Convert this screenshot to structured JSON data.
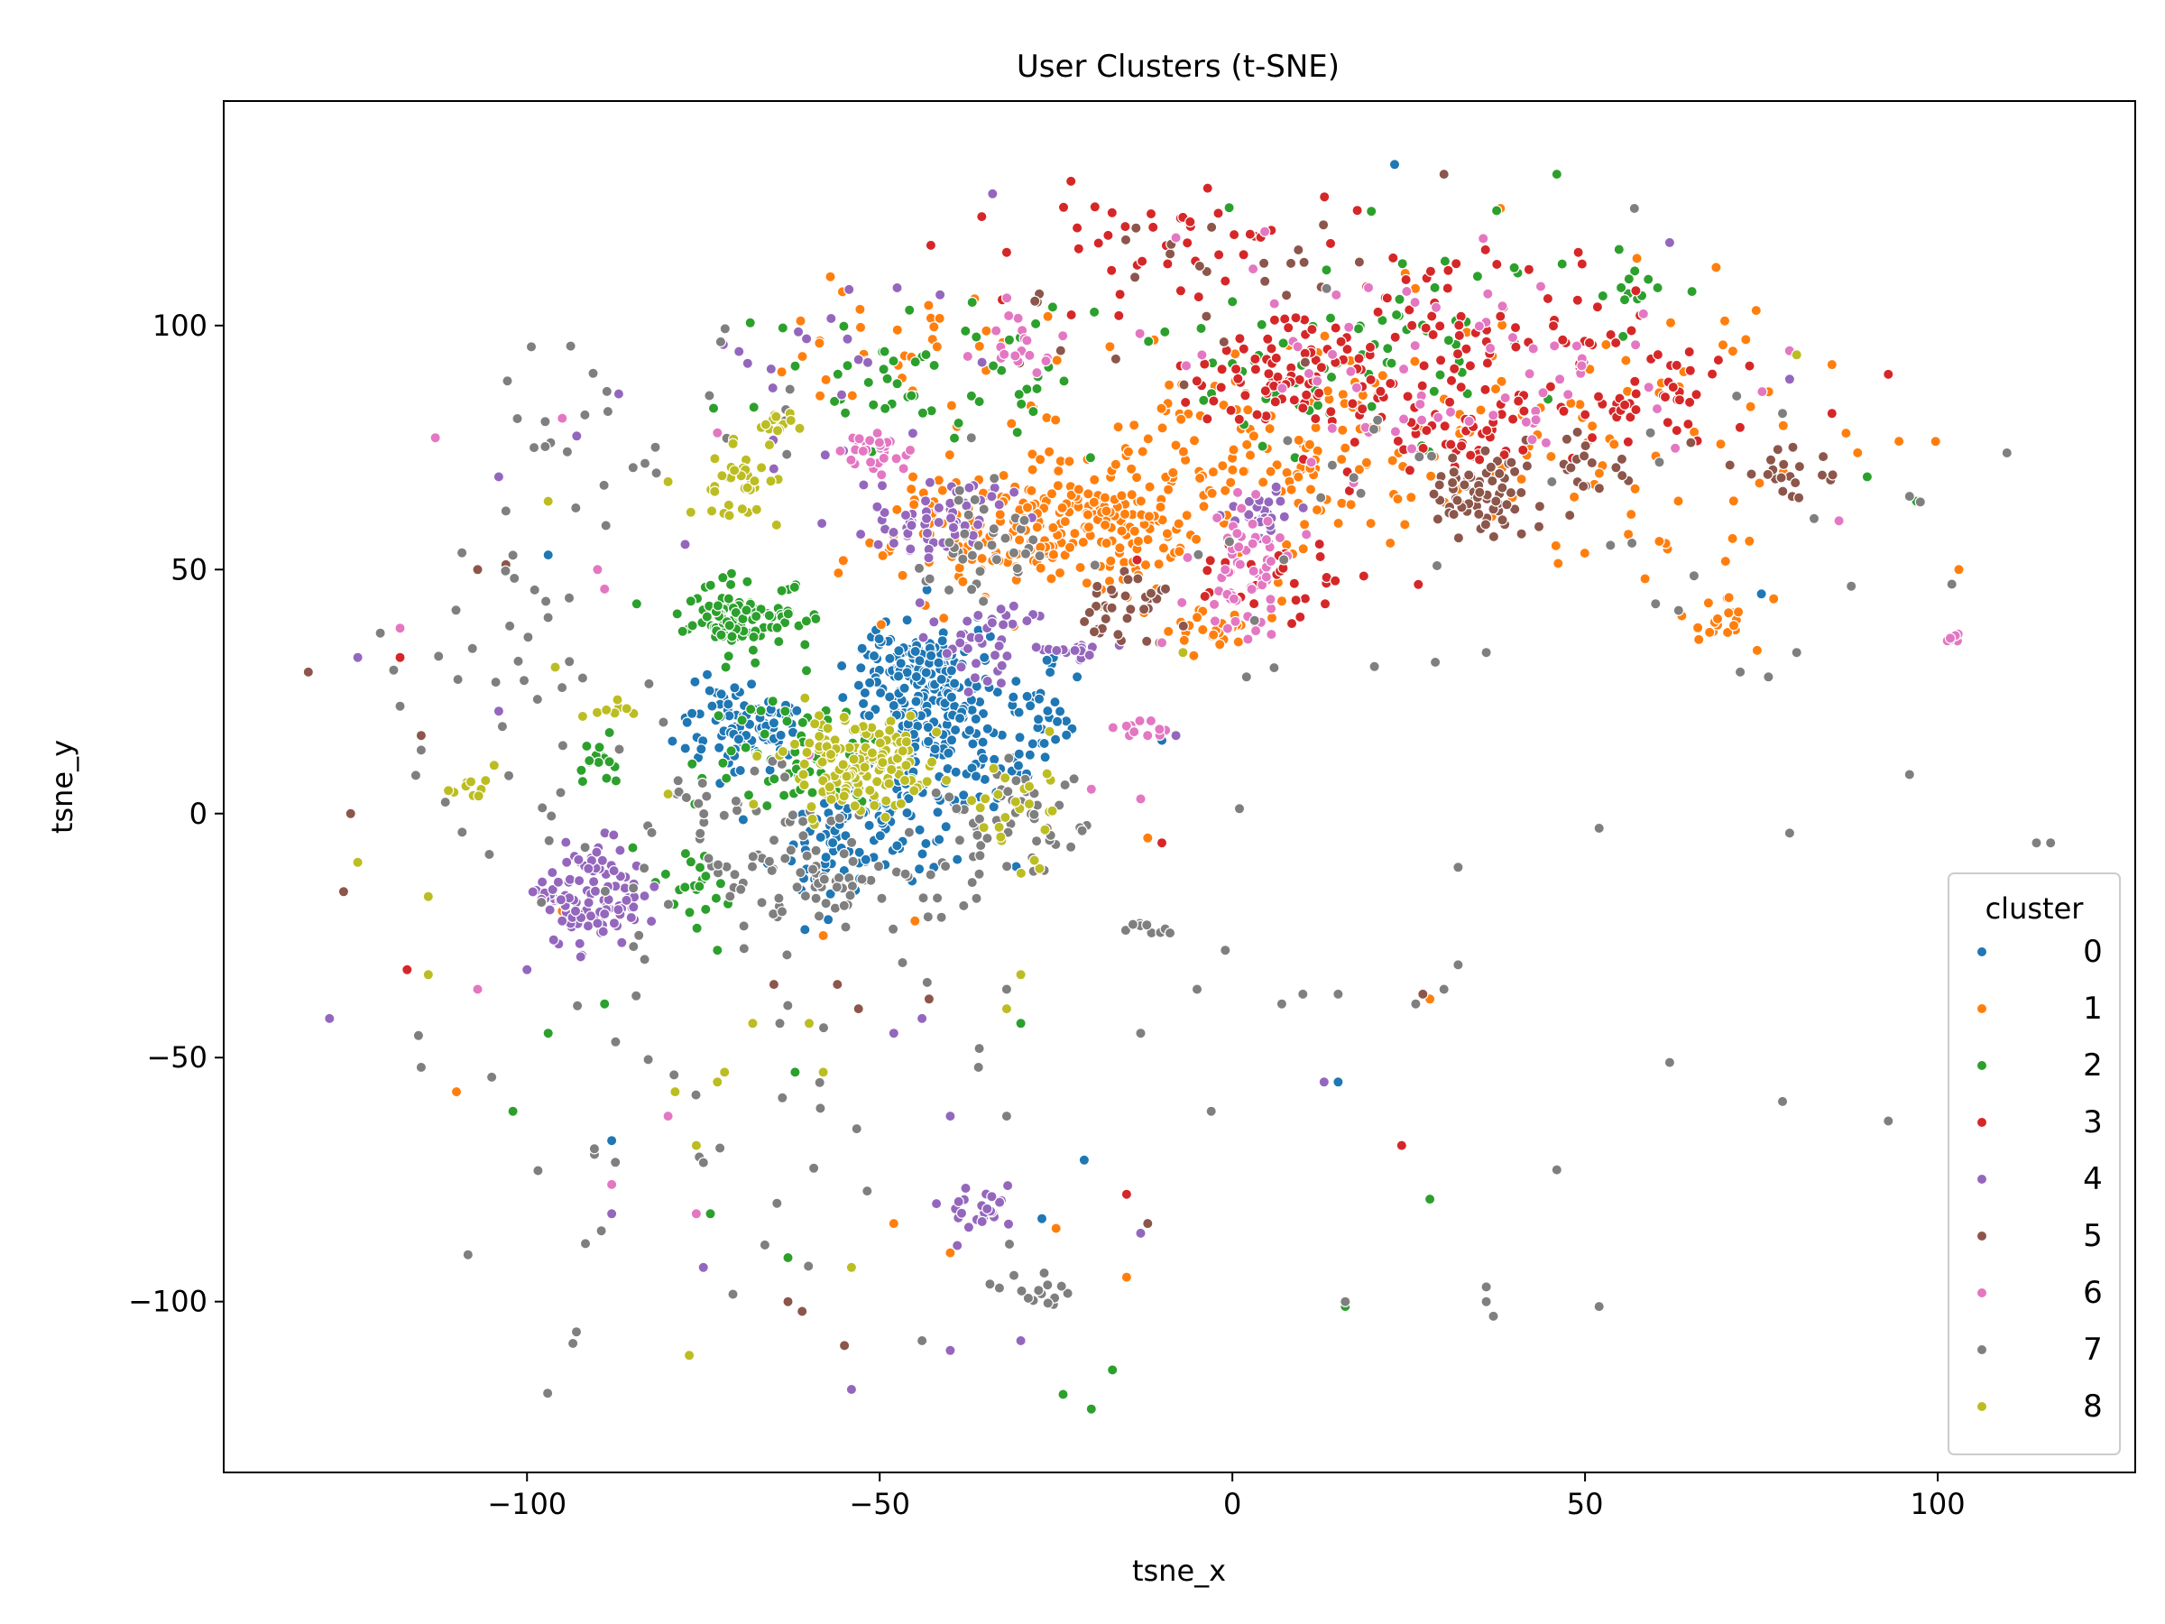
{
  "chart_data": {
    "type": "scatter",
    "title": "User Clusters (t-SNE)",
    "xlabel": "tsne_x",
    "ylabel": "tsne_y",
    "xlim": [
      -143,
      128
    ],
    "ylim": [
      -135,
      146
    ],
    "xticks": [
      -100,
      -50,
      0,
      50,
      100
    ],
    "yticks": [
      -100,
      -50,
      0,
      50,
      100
    ],
    "xtick_labels": [
      "−100",
      "−50",
      "0",
      "50",
      "100"
    ],
    "ytick_labels": [
      "−100",
      "−50",
      "0",
      "50",
      "100"
    ],
    "grid": false,
    "legend": {
      "title": "cluster",
      "placement": "lower-right"
    },
    "series": [
      {
        "name": "0",
        "color": "#1f77b4",
        "clusters": [
          {
            "x": -45,
            "y": 28,
            "sx": 4,
            "sy": 6,
            "n": 150
          },
          {
            "x": -42,
            "y": 12,
            "sx": 6,
            "sy": 8,
            "n": 160
          },
          {
            "x": -70,
            "y": 18,
            "sx": 4,
            "sy": 5,
            "n": 90
          },
          {
            "x": -55,
            "y": -5,
            "sx": 6,
            "sy": 7,
            "n": 80
          },
          {
            "x": -28,
            "y": 20,
            "sx": 3,
            "sy": 5,
            "n": 30
          }
        ],
        "points": [
          [
            23,
            133
          ],
          [
            75,
            45
          ],
          [
            -97,
            53
          ],
          [
            -88,
            -67
          ],
          [
            -14,
            17
          ],
          [
            15,
            -55
          ],
          [
            -22,
            28
          ],
          [
            -40,
            -62
          ],
          [
            -27,
            -83
          ],
          [
            -21,
            -71
          ],
          [
            -10,
            15
          ]
        ]
      },
      {
        "name": "1",
        "color": "#ff7f0e",
        "clusters": [
          {
            "x": -18,
            "y": 60,
            "sx": 8,
            "sy": 7,
            "n": 170
          },
          {
            "x": -38,
            "y": 57,
            "sx": 7,
            "sy": 6,
            "n": 90
          },
          {
            "x": 5,
            "y": 73,
            "sx": 12,
            "sy": 10,
            "n": 110
          },
          {
            "x": 45,
            "y": 75,
            "sx": 22,
            "sy": 15,
            "n": 110
          },
          {
            "x": -3,
            "y": 37,
            "sx": 3,
            "sy": 2,
            "n": 25
          },
          {
            "x": 70,
            "y": 40,
            "sx": 3,
            "sy": 3,
            "n": 20
          },
          {
            "x": -45,
            "y": 95,
            "sx": 14,
            "sy": 10,
            "n": 40
          }
        ],
        "points": [
          [
            -57,
            110
          ],
          [
            38,
            124
          ],
          [
            85,
            92
          ],
          [
            103,
            50
          ],
          [
            -95,
            -20
          ],
          [
            -40,
            -90
          ],
          [
            -25,
            -85
          ],
          [
            -15,
            -95
          ],
          [
            -58,
            -25
          ],
          [
            -48,
            -84
          ],
          [
            -110,
            -57
          ],
          [
            28,
            -38
          ],
          [
            -12,
            -5
          ],
          [
            -45,
            -22
          ]
        ]
      },
      {
        "name": "2",
        "color": "#2ca02c",
        "clusters": [
          {
            "x": -70,
            "y": 40,
            "sx": 4,
            "sy": 3,
            "n": 110
          },
          {
            "x": -62,
            "y": 12,
            "sx": 7,
            "sy": 7,
            "n": 60
          },
          {
            "x": -40,
            "y": 90,
            "sx": 12,
            "sy": 8,
            "n": 60
          },
          {
            "x": 15,
            "y": 95,
            "sx": 14,
            "sy": 10,
            "n": 70
          },
          {
            "x": -90,
            "y": 10,
            "sx": 2,
            "sy": 3,
            "n": 15
          },
          {
            "x": -76,
            "y": -15,
            "sx": 3,
            "sy": 4,
            "n": 20
          },
          {
            "x": 55,
            "y": 108,
            "sx": 5,
            "sy": 4,
            "n": 15
          }
        ],
        "points": [
          [
            46,
            131
          ],
          [
            -97,
            -45
          ],
          [
            -102,
            -61
          ],
          [
            -89,
            -39
          ],
          [
            -73,
            -28
          ],
          [
            -62,
            -53
          ],
          [
            -63,
            -91
          ],
          [
            -20,
            -122
          ],
          [
            -17,
            -114
          ],
          [
            -24,
            -119
          ],
          [
            16,
            -101
          ],
          [
            28,
            -79
          ],
          [
            -30,
            -43
          ],
          [
            90,
            69
          ],
          [
            97,
            64
          ],
          [
            -74,
            -82
          ],
          [
            -85,
            -7
          ]
        ]
      },
      {
        "name": "3",
        "color": "#d62728",
        "clusters": [
          {
            "x": 8,
            "y": 90,
            "sx": 7,
            "sy": 6,
            "n": 90
          },
          {
            "x": 30,
            "y": 78,
            "sx": 8,
            "sy": 6,
            "n": 60
          },
          {
            "x": 38,
            "y": 100,
            "sx": 10,
            "sy": 8,
            "n": 70
          },
          {
            "x": 60,
            "y": 85,
            "sx": 6,
            "sy": 6,
            "n": 40
          },
          {
            "x": 8,
            "y": 48,
            "sx": 8,
            "sy": 4,
            "n": 30
          },
          {
            "x": -10,
            "y": 115,
            "sx": 12,
            "sy": 6,
            "n": 40
          }
        ],
        "points": [
          [
            -118,
            32
          ],
          [
            -117,
            -32
          ],
          [
            24,
            -68
          ],
          [
            93,
            90
          ],
          [
            -15,
            -78
          ],
          [
            -10,
            -6
          ],
          [
            -32,
            115
          ],
          [
            -22,
            120
          ],
          [
            85,
            82
          ],
          [
            -2,
            123
          ]
        ]
      },
      {
        "name": "4",
        "color": "#9467bd",
        "clusters": [
          {
            "x": -90,
            "y": -17,
            "sx": 4,
            "sy": 5,
            "n": 110
          },
          {
            "x": -42,
            "y": 60,
            "sx": 5,
            "sy": 4,
            "n": 60
          },
          {
            "x": -35,
            "y": 35,
            "sx": 4,
            "sy": 5,
            "n": 40
          },
          {
            "x": 4,
            "y": 62,
            "sx": 3,
            "sy": 3,
            "n": 25
          },
          {
            "x": -35,
            "y": -82,
            "sx": 3,
            "sy": 3,
            "n": 25
          },
          {
            "x": -60,
            "y": 85,
            "sx": 12,
            "sy": 15,
            "n": 30
          },
          {
            "x": -22,
            "y": 33,
            "sx": 3,
            "sy": 2,
            "n": 15
          }
        ],
        "points": [
          [
            -128,
            -42
          ],
          [
            -124,
            32
          ],
          [
            -104,
            69
          ],
          [
            -87,
            86
          ],
          [
            -54,
            -118
          ],
          [
            -40,
            -110
          ],
          [
            -30,
            -108
          ],
          [
            -13,
            -86
          ],
          [
            13,
            -55
          ],
          [
            -8,
            16
          ],
          [
            -48,
            -45
          ],
          [
            -40,
            -62
          ],
          [
            -34,
            127
          ],
          [
            62,
            117
          ],
          [
            79,
            89
          ],
          [
            -44,
            -42
          ],
          [
            -100,
            -32
          ],
          [
            -75,
            -93
          ],
          [
            -88,
            -82
          ],
          [
            -104,
            21
          ]
        ]
      },
      {
        "name": "5",
        "color": "#8c564b",
        "clusters": [
          {
            "x": 35,
            "y": 65,
            "sx": 4,
            "sy": 4,
            "n": 70
          },
          {
            "x": -15,
            "y": 42,
            "sx": 4,
            "sy": 4,
            "n": 35
          },
          {
            "x": 77,
            "y": 70,
            "sx": 4,
            "sy": 3,
            "n": 20
          },
          {
            "x": 50,
            "y": 70,
            "sx": 4,
            "sy": 4,
            "n": 20
          },
          {
            "x": -5,
            "y": 108,
            "sx": 12,
            "sy": 8,
            "n": 25
          }
        ],
        "points": [
          [
            -131,
            29
          ],
          [
            -125,
            0
          ],
          [
            -126,
            -16
          ],
          [
            -115,
            16
          ],
          [
            -107,
            50
          ],
          [
            -103,
            51
          ],
          [
            -63,
            -100
          ],
          [
            -55,
            -109
          ],
          [
            -61,
            -102
          ],
          [
            -43,
            -38
          ],
          [
            -53,
            -40
          ],
          [
            -65,
            -35
          ],
          [
            -56,
            -35
          ],
          [
            27,
            -37
          ],
          [
            -12,
            -84
          ],
          [
            -28,
            105
          ],
          [
            30,
            131
          ],
          [
            18,
            113
          ],
          [
            65,
            76
          ]
        ]
      },
      {
        "name": "6",
        "color": "#e377c2",
        "clusters": [
          {
            "x": 2,
            "y": 50,
            "sx": 3,
            "sy": 6,
            "n": 60
          },
          {
            "x": -50,
            "y": 75,
            "sx": 3,
            "sy": 2,
            "n": 30
          },
          {
            "x": 30,
            "y": 90,
            "sx": 18,
            "sy": 12,
            "n": 70
          },
          {
            "x": -30,
            "y": 96,
            "sx": 4,
            "sy": 3,
            "n": 20
          },
          {
            "x": -14,
            "y": 17,
            "sx": 2,
            "sy": 1,
            "n": 12
          },
          {
            "x": 102,
            "y": 36,
            "sx": 0.5,
            "sy": 0.5,
            "n": 6
          }
        ],
        "points": [
          [
            -118,
            38
          ],
          [
            -95,
            81
          ],
          [
            -113,
            77
          ],
          [
            -90,
            50
          ],
          [
            -89,
            46
          ],
          [
            -107,
            -36
          ],
          [
            -88,
            -76
          ],
          [
            -76,
            -82
          ],
          [
            -80,
            -62
          ],
          [
            -20,
            5
          ],
          [
            -13,
            3
          ],
          [
            -60,
            12
          ],
          [
            -8,
            118
          ],
          [
            86,
            60
          ],
          [
            -73,
            78
          ],
          [
            -10,
            35
          ]
        ]
      },
      {
        "name": "7",
        "color": "#7f7f7f",
        "clusters": [
          {
            "x": -55,
            "y": -15,
            "sx": 8,
            "sy": 5,
            "n": 70
          },
          {
            "x": -30,
            "y": 0,
            "sx": 5,
            "sy": 6,
            "n": 50
          },
          {
            "x": -35,
            "y": 55,
            "sx": 5,
            "sy": 5,
            "n": 40
          },
          {
            "x": -70,
            "y": 0,
            "sx": 8,
            "sy": 8,
            "n": 40
          },
          {
            "x": -100,
            "y": 30,
            "sx": 8,
            "sy": 20,
            "n": 40
          },
          {
            "x": -70,
            "y": -60,
            "sx": 20,
            "sy": 30,
            "n": 50
          },
          {
            "x": -27,
            "y": -97,
            "sx": 3,
            "sy": 2,
            "n": 15
          },
          {
            "x": -12,
            "y": -23,
            "sx": 2,
            "sy": 1,
            "n": 10
          },
          {
            "x": 40,
            "y": 60,
            "sx": 25,
            "sy": 15,
            "n": 30
          },
          {
            "x": -80,
            "y": 85,
            "sx": 12,
            "sy": 10,
            "n": 25
          }
        ],
        "points": [
          [
            114,
            -6
          ],
          [
            116,
            -6
          ],
          [
            96,
            8
          ],
          [
            52,
            -3
          ],
          [
            79,
            -4
          ],
          [
            32,
            -11
          ],
          [
            1,
            1
          ],
          [
            -3,
            -61
          ],
          [
            -5,
            -36
          ],
          [
            10,
            -37
          ],
          [
            15,
            -37
          ],
          [
            -1,
            -28
          ],
          [
            -13,
            -45
          ],
          [
            32,
            -31
          ],
          [
            7,
            -39
          ],
          [
            30,
            -36
          ],
          [
            26,
            -39
          ],
          [
            62,
            -51
          ],
          [
            78,
            -59
          ],
          [
            93,
            -63
          ],
          [
            46,
            -73
          ],
          [
            36,
            -97
          ],
          [
            36,
            -100
          ],
          [
            37,
            -103
          ],
          [
            52,
            -101
          ],
          [
            16,
            -100
          ],
          [
            -32,
            -62
          ],
          [
            -36,
            -52
          ],
          [
            -44,
            -108
          ],
          [
            -37,
            77
          ],
          [
            57,
            124
          ],
          [
            78,
            82
          ],
          [
            96,
            65
          ],
          [
            60,
            43
          ],
          [
            72,
            29
          ],
          [
            76,
            28
          ],
          [
            80,
            33
          ],
          [
            102,
            47
          ],
          [
            36,
            33
          ],
          [
            2,
            28
          ],
          [
            -32,
            -36
          ],
          [
            -115,
            13
          ],
          [
            -118,
            22
          ],
          [
            -115,
            -52
          ],
          [
            -105,
            -54
          ],
          [
            -99,
            75
          ],
          [
            -103,
            62
          ]
        ]
      },
      {
        "name": "8",
        "color": "#bcbd22",
        "clusters": [
          {
            "x": -53,
            "y": 10,
            "sx": 5,
            "sy": 5,
            "n": 160
          },
          {
            "x": -70,
            "y": 67,
            "sx": 2,
            "sy": 4,
            "n": 35
          },
          {
            "x": -65,
            "y": 80,
            "sx": 2,
            "sy": 2,
            "n": 15
          },
          {
            "x": -30,
            "y": 0,
            "sx": 4,
            "sy": 8,
            "n": 25
          },
          {
            "x": -88,
            "y": 21,
            "sx": 1.5,
            "sy": 1,
            "n": 8
          },
          {
            "x": -108,
            "y": 6,
            "sx": 2,
            "sy": 2,
            "n": 10
          }
        ],
        "points": [
          [
            -124,
            -10
          ],
          [
            -114,
            -33
          ],
          [
            -114,
            -17
          ],
          [
            -97,
            64
          ],
          [
            -79,
            -57
          ],
          [
            -76,
            -68
          ],
          [
            -72,
            -53
          ],
          [
            -73,
            -55
          ],
          [
            -77,
            -111
          ],
          [
            -54,
            -93
          ],
          [
            -32,
            -40
          ],
          [
            -60,
            -43
          ],
          [
            -30,
            -33
          ],
          [
            80,
            94
          ],
          [
            -7,
            33
          ],
          [
            -80,
            4
          ],
          [
            -80,
            68
          ],
          [
            -96,
            30
          ],
          [
            -58,
            -53
          ],
          [
            -68,
            -43
          ]
        ]
      }
    ]
  }
}
